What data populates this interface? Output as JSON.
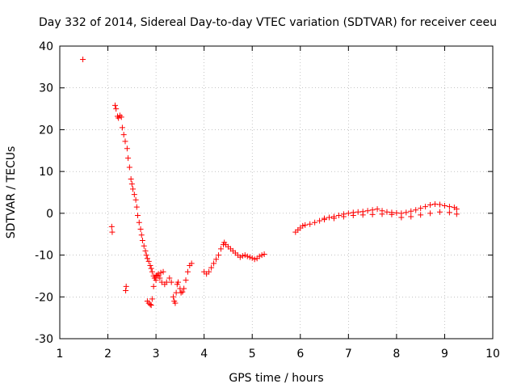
{
  "chart_data": {
    "type": "scatter",
    "title": "Day 332 of 2014, Sidereal Day-to-day VTEC variation (SDTVAR) for receiver ceeu",
    "xlabel": "GPS time / hours",
    "ylabel": "SDTVAR / TECUs",
    "xlim": [
      1,
      10
    ],
    "ylim": [
      -30,
      40
    ],
    "xticks": [
      "1",
      "2",
      "3",
      "4",
      "5",
      "6",
      "7",
      "8",
      "9",
      "10"
    ],
    "yticks": [
      "40",
      "30",
      "20",
      "10",
      "0",
      "-10",
      "-20",
      "-30"
    ],
    "grid": true,
    "marker": "+",
    "color": "#ff0000",
    "series": [
      {
        "name": "SDTVAR",
        "x": [
          1.48,
          2.08,
          2.09,
          2.15,
          2.17,
          2.2,
          2.22,
          2.25,
          2.28,
          2.3,
          2.33,
          2.36,
          2.37,
          2.38,
          2.4,
          2.42,
          2.45,
          2.48,
          2.5,
          2.52,
          2.55,
          2.58,
          2.6,
          2.62,
          2.65,
          2.68,
          2.7,
          2.72,
          2.75,
          2.78,
          2.8,
          2.82,
          2.85,
          2.88,
          2.9,
          2.92,
          2.95,
          2.98,
          3.0,
          3.05,
          3.1,
          3.15,
          2.82,
          2.85,
          2.88,
          2.9,
          2.92,
          2.95,
          2.97,
          3.0,
          3.02,
          3.05,
          3.08,
          3.12,
          3.18,
          3.22,
          3.28,
          3.32,
          3.36,
          3.38,
          3.4,
          3.42,
          3.44,
          3.46,
          3.5,
          3.52,
          3.55,
          3.58,
          3.62,
          3.66,
          3.7,
          3.74,
          4.0,
          4.05,
          4.1,
          4.15,
          4.2,
          4.25,
          4.3,
          4.35,
          4.4,
          4.42,
          4.45,
          4.5,
          4.55,
          4.6,
          4.65,
          4.7,
          4.75,
          4.8,
          4.85,
          4.9,
          4.95,
          5.0,
          5.05,
          5.1,
          5.15,
          5.2,
          5.25,
          5.9,
          5.95,
          6.0,
          6.05,
          6.1,
          6.2,
          6.3,
          6.4,
          6.5,
          6.6,
          6.7,
          6.8,
          6.9,
          7.0,
          7.1,
          7.2,
          7.3,
          7.4,
          7.5,
          7.6,
          7.7,
          7.8,
          7.9,
          8.0,
          8.1,
          8.2,
          8.3,
          8.4,
          8.5,
          8.6,
          8.7,
          8.8,
          8.9,
          9.0,
          9.1,
          9.2,
          9.25,
          6.5,
          6.7,
          6.9,
          7.1,
          7.3,
          7.5,
          7.7,
          7.9,
          8.1,
          8.3,
          8.5,
          8.7,
          8.9,
          9.1,
          9.25
        ],
        "y": [
          36.8,
          -3.2,
          -4.5,
          25.8,
          25.0,
          23.2,
          22.8,
          23.4,
          23.0,
          20.5,
          18.8,
          17.2,
          -18.5,
          -17.5,
          15.5,
          13.2,
          11.0,
          8.2,
          7.0,
          5.8,
          4.5,
          3.2,
          1.5,
          -0.5,
          -2.2,
          -3.8,
          -5.2,
          -6.5,
          -7.8,
          -9.0,
          -10.0,
          -10.8,
          -11.5,
          -12.5,
          -13.2,
          -14.0,
          -15.0,
          -15.5,
          -16.0,
          -14.5,
          -14.2,
          -14.0,
          -21.0,
          -21.5,
          -21.8,
          -22.0,
          -20.5,
          -17.5,
          -15.5,
          -15.0,
          -14.8,
          -15.0,
          -15.5,
          -16.5,
          -17.0,
          -16.5,
          -15.5,
          -16.5,
          -20.0,
          -21.0,
          -21.5,
          -19.0,
          -17.0,
          -16.5,
          -18.0,
          -19.0,
          -18.8,
          -18.0,
          -16.0,
          -14.0,
          -12.5,
          -12.0,
          -14.0,
          -14.5,
          -14.0,
          -13.0,
          -12.0,
          -11.0,
          -10.0,
          -8.5,
          -7.5,
          -7.0,
          -7.5,
          -8.0,
          -8.5,
          -9.0,
          -9.5,
          -10.0,
          -10.5,
          -10.2,
          -10.0,
          -10.3,
          -10.5,
          -10.7,
          -11.0,
          -10.8,
          -10.3,
          -10.0,
          -9.8,
          -4.5,
          -4.0,
          -3.5,
          -3.0,
          -2.8,
          -2.6,
          -2.2,
          -1.8,
          -1.2,
          -1.0,
          -0.8,
          -0.5,
          -0.2,
          0.0,
          0.2,
          0.3,
          0.4,
          0.6,
          0.8,
          1.0,
          0.6,
          0.3,
          0.2,
          0.1,
          0.0,
          0.2,
          0.5,
          0.8,
          1.2,
          1.6,
          2.0,
          2.2,
          2.1,
          1.8,
          1.6,
          1.4,
          1.0,
          -1.5,
          -1.2,
          -0.8,
          -0.5,
          -0.4,
          -0.3,
          -0.2,
          -0.3,
          -1.0,
          -0.8,
          -0.4,
          0.0,
          0.3,
          0.2,
          -0.2
        ]
      }
    ]
  }
}
